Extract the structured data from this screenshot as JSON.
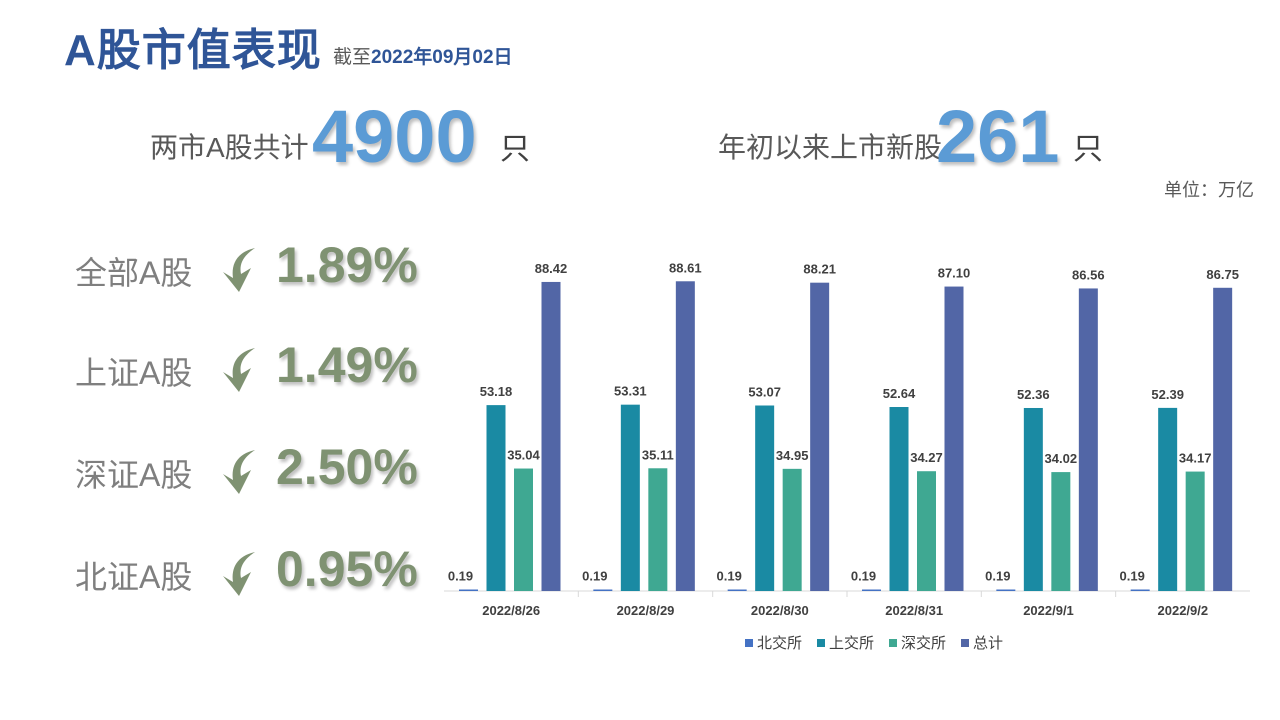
{
  "header": {
    "title": "A股市值表现",
    "date_prefix": "截至",
    "date": "2022年09月02日"
  },
  "stats": {
    "total_label": "两市A股共计",
    "total_value": "4900",
    "total_unit": "只",
    "new_label": "年初以来上市新股",
    "new_value": "261",
    "new_unit": "只"
  },
  "unit_note": "单位：万亿",
  "changes": [
    {
      "label": "全部A股",
      "value": "1.89%"
    },
    {
      "label": "上证A股",
      "value": "1.49%"
    },
    {
      "label": "深证A股",
      "value": "2.50%"
    },
    {
      "label": "北证A股",
      "value": "0.95%"
    }
  ],
  "colors": {
    "series": [
      "#4472c4",
      "#1a8aa3",
      "#3fa892",
      "#5266a6"
    ],
    "arrow": "#7f9272"
  },
  "chart_data": {
    "type": "bar",
    "categories": [
      "2022/8/26",
      "2022/8/29",
      "2022/8/30",
      "2022/8/31",
      "2022/9/1",
      "2022/9/2"
    ],
    "series": [
      {
        "name": "北交所",
        "values": [
          0.19,
          0.19,
          0.19,
          0.19,
          0.19,
          0.19
        ]
      },
      {
        "name": "上交所",
        "values": [
          53.18,
          53.31,
          53.07,
          52.64,
          52.36,
          52.39
        ]
      },
      {
        "name": "深交所",
        "values": [
          35.04,
          35.11,
          34.95,
          34.27,
          34.02,
          34.17
        ]
      },
      {
        "name": "总计",
        "values": [
          88.42,
          88.61,
          88.21,
          87.1,
          86.56,
          86.75
        ]
      }
    ],
    "title": "",
    "xlabel": "",
    "ylabel": "",
    "ylim": [
      0,
      100
    ],
    "grid": false,
    "legend": "bottom"
  }
}
